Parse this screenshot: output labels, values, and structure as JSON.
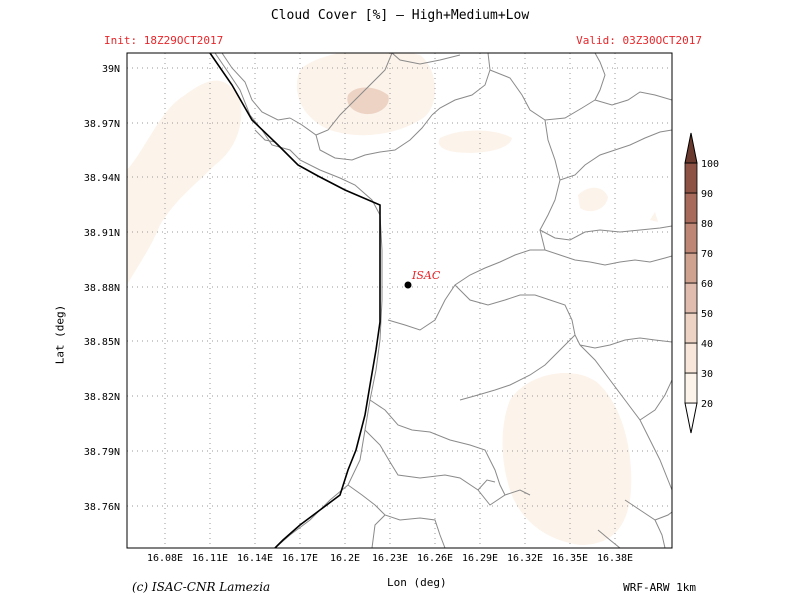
{
  "header": {
    "title": "Cloud Cover [%] — High+Medium+Low",
    "init": "Init: 18Z29OCT2017",
    "valid": "Valid: 03Z30OCT2017"
  },
  "axes": {
    "xlabel": "Lon (deg)",
    "ylabel": "Lat (deg)",
    "x_ticks": [
      "16.08E",
      "16.11E",
      "16.14E",
      "16.17E",
      "16.2E",
      "16.23E",
      "16.26E",
      "16.29E",
      "16.32E",
      "16.35E",
      "16.38E"
    ],
    "y_ticks": [
      "39N",
      "38.97N",
      "38.94N",
      "38.91N",
      "38.88N",
      "38.85N",
      "38.82N",
      "38.79N",
      "38.76N"
    ]
  },
  "station": {
    "label": "ISAC",
    "color": "#e8262a"
  },
  "colorbar": {
    "levels": [
      "20",
      "30",
      "40",
      "50",
      "60",
      "70",
      "80",
      "90",
      "100"
    ],
    "colors": [
      "#fcf3ea",
      "#f7e6d9",
      "#ecd3c4",
      "#dfbcad",
      "#cfa290",
      "#be8775",
      "#a86a5a",
      "#8d5244",
      "#6b3a2e"
    ]
  },
  "footer": {
    "credit": "(c) ISAC-CNR Lamezia",
    "model": "WRF-ARW 1km"
  }
}
